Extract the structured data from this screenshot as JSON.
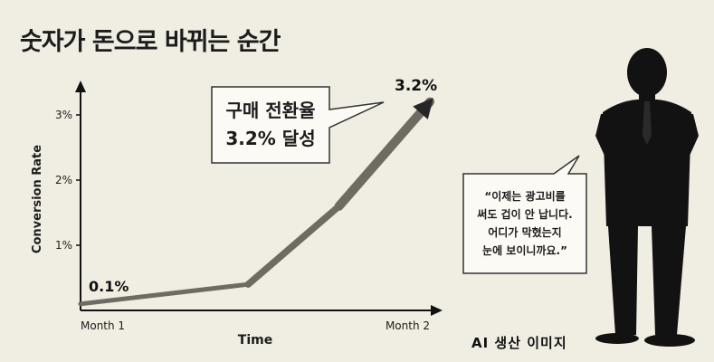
{
  "title": "숫자가 돈으로 바뀌는 순간",
  "chart_data": {
    "type": "line",
    "categories": [
      "Month 1",
      "Month 2"
    ],
    "xlabel": "Time",
    "ylabel": "Conversion Rate",
    "ylim": [
      0,
      3.2
    ],
    "yticks": [
      "1%",
      "2%",
      "3%"
    ],
    "grid": false,
    "series": [
      {
        "x": [
          0,
          0.48,
          0.74,
          1.0
        ],
        "values": [
          0.1,
          0.4,
          1.6,
          3.2
        ]
      }
    ],
    "start_label": "0.1%",
    "end_label": "3.2%",
    "line_color": "#6e6b63"
  },
  "callout": {
    "line1": "구매 전환율",
    "line2": "3.2% 달성"
  },
  "quote": {
    "line1": "“이제는 광고비를",
    "line2": "써도 겁이 안 납니다.",
    "line3": "어디가 막혔는지",
    "line4": "눈에 보이니까요.”"
  },
  "caption": "AI 생산 이미지"
}
